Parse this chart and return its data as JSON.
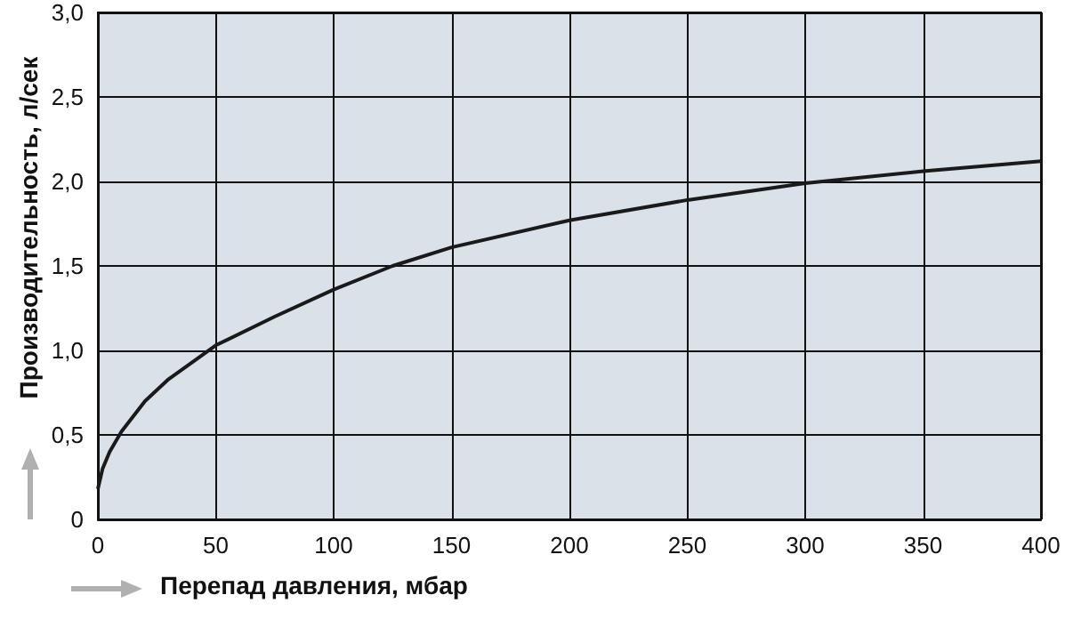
{
  "chart_data": {
    "type": "line",
    "xlabel": "Перепад давления, мбар",
    "ylabel": "Производительность, л/сек",
    "x": [
      0,
      2,
      5,
      10,
      20,
      30,
      50,
      75,
      100,
      125,
      150,
      200,
      250,
      300,
      350,
      400
    ],
    "series": [
      {
        "color": "#1a1a1a",
        "values": [
          0.18,
          0.3,
          0.4,
          0.52,
          0.7,
          0.83,
          1.03,
          1.2,
          1.36,
          1.5,
          1.61,
          1.77,
          1.89,
          1.99,
          2.06,
          2.12
        ]
      }
    ],
    "xlim": [
      0,
      400
    ],
    "xticks": [
      0,
      50,
      100,
      150,
      200,
      250,
      300,
      350,
      400
    ],
    "ylim": [
      0,
      3
    ],
    "yticks": [
      0,
      {
        "value": 0.5,
        "label": "0,5"
      },
      {
        "value": 1,
        "label": "1,0"
      },
      {
        "value": 1.5,
        "label": "1,5"
      },
      {
        "value": 2,
        "label": "2,0"
      },
      {
        "value": 2.5,
        "label": "2,5"
      },
      {
        "value": 3,
        "label": "3,0"
      }
    ],
    "grid": true,
    "marker": "none",
    "line_style": "solid"
  }
}
